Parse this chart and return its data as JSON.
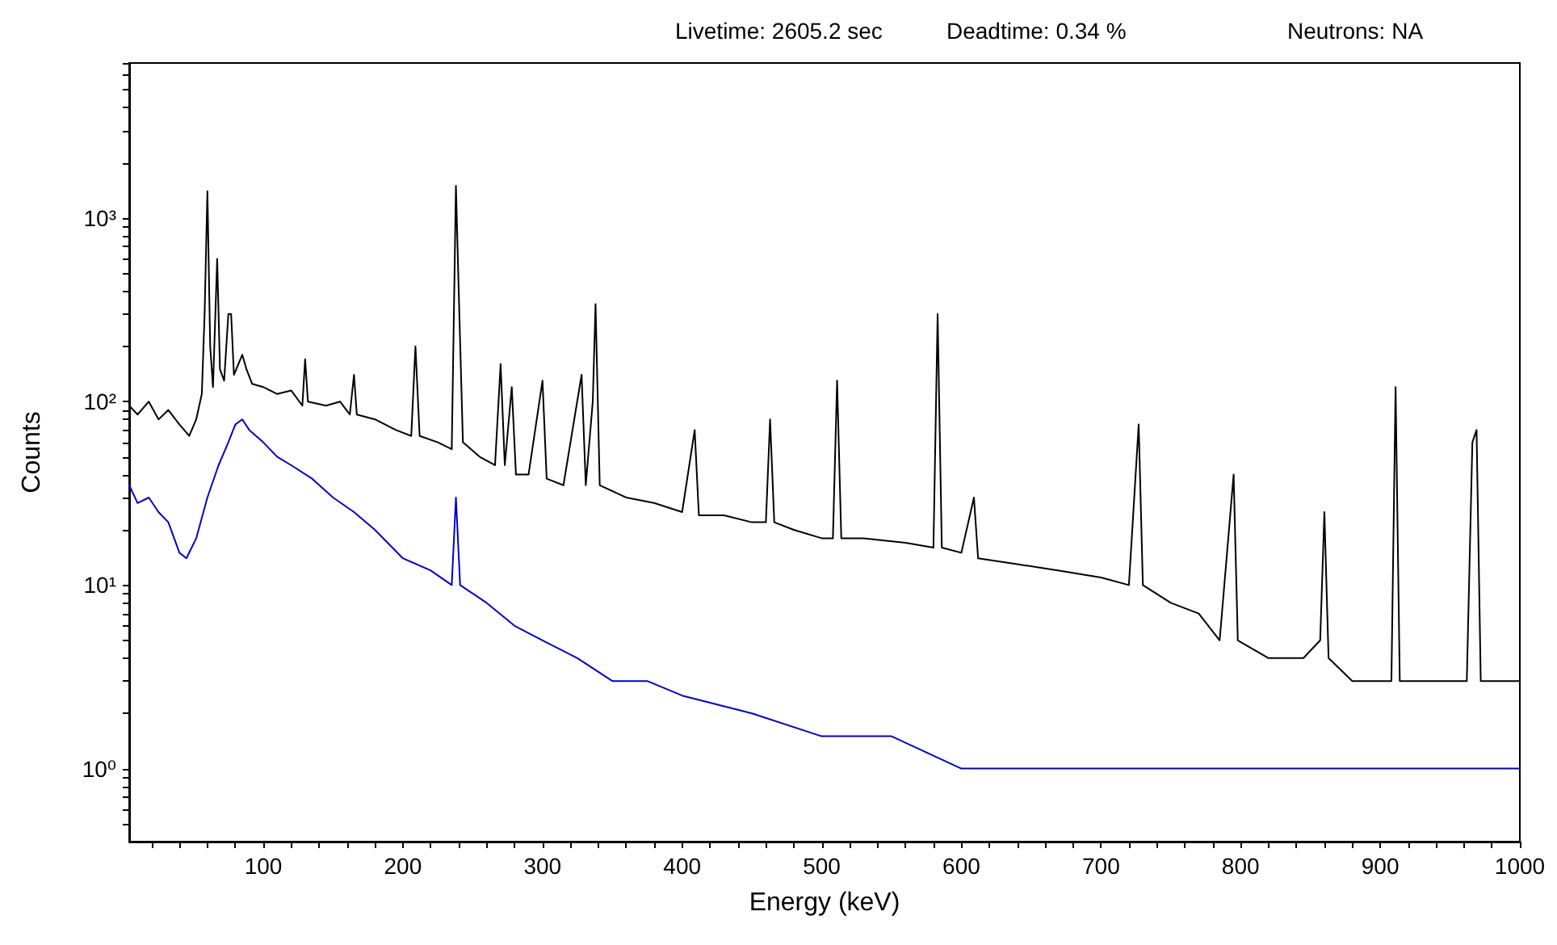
{
  "chart_data": {
    "type": "line",
    "xlabel": "Energy (keV)",
    "ylabel": "Counts",
    "annotations": [
      "Livetime: 2605.2 sec",
      "Deadtime: 0.34 %",
      "Neutrons: NA"
    ],
    "log": "y",
    "grid": false,
    "marker": "none",
    "line_style": "solid",
    "xlim": [
      4,
      1000
    ],
    "xticks": [
      {
        "value": 20,
        "label": null
      },
      {
        "value": 40,
        "label": null
      },
      {
        "value": 60,
        "label": null
      },
      {
        "value": 80,
        "label": null
      },
      100,
      {
        "value": 120,
        "label": null
      },
      {
        "value": 140,
        "label": null
      },
      {
        "value": 160,
        "label": null
      },
      {
        "value": 180,
        "label": null
      },
      200,
      {
        "value": 220,
        "label": null
      },
      {
        "value": 240,
        "label": null
      },
      {
        "value": 260,
        "label": null
      },
      {
        "value": 280,
        "label": null
      },
      300,
      {
        "value": 320,
        "label": null
      },
      {
        "value": 340,
        "label": null
      },
      {
        "value": 360,
        "label": null
      },
      {
        "value": 380,
        "label": null
      },
      400,
      {
        "value": 420,
        "label": null
      },
      {
        "value": 440,
        "label": null
      },
      {
        "value": 460,
        "label": null
      },
      {
        "value": 480,
        "label": null
      },
      500,
      {
        "value": 520,
        "label": null
      },
      {
        "value": 540,
        "label": null
      },
      {
        "value": 560,
        "label": null
      },
      {
        "value": 580,
        "label": null
      },
      600,
      {
        "value": 620,
        "label": null
      },
      {
        "value": 640,
        "label": null
      },
      {
        "value": 660,
        "label": null
      },
      {
        "value": 680,
        "label": null
      },
      700,
      {
        "value": 720,
        "label": null
      },
      {
        "value": 740,
        "label": null
      },
      {
        "value": 760,
        "label": null
      },
      {
        "value": 780,
        "label": null
      },
      800,
      {
        "value": 820,
        "label": null
      },
      {
        "value": 840,
        "label": null
      },
      {
        "value": 860,
        "label": null
      },
      {
        "value": 880,
        "label": null
      },
      900,
      {
        "value": 920,
        "label": null
      },
      {
        "value": 940,
        "label": null
      },
      {
        "value": 960,
        "label": null
      },
      {
        "value": 980,
        "label": null
      },
      1000
    ],
    "ylim": [
      0.4,
      7000
    ],
    "yticks": [
      {
        "value": 0.5,
        "label": null
      },
      {
        "value": 0.6,
        "label": null
      },
      {
        "value": 0.7,
        "label": null
      },
      {
        "value": 0.8,
        "label": null
      },
      {
        "value": 0.9,
        "label": null
      },
      {
        "value": 1,
        "label": "10⁰"
      },
      {
        "value": 2,
        "label": null
      },
      {
        "value": 3,
        "label": null
      },
      {
        "value": 4,
        "label": null
      },
      {
        "value": 5,
        "label": null
      },
      {
        "value": 6,
        "label": null
      },
      {
        "value": 7,
        "label": null
      },
      {
        "value": 8,
        "label": null
      },
      {
        "value": 9,
        "label": null
      },
      {
        "value": 10,
        "label": "10¹"
      },
      {
        "value": 20,
        "label": null
      },
      {
        "value": 30,
        "label": null
      },
      {
        "value": 40,
        "label": null
      },
      {
        "value": 50,
        "label": null
      },
      {
        "value": 60,
        "label": null
      },
      {
        "value": 70,
        "label": null
      },
      {
        "value": 80,
        "label": null
      },
      {
        "value": 90,
        "label": null
      },
      {
        "value": 100,
        "label": "10²"
      },
      {
        "value": 200,
        "label": null
      },
      {
        "value": 300,
        "label": null
      },
      {
        "value": 400,
        "label": null
      },
      {
        "value": 500,
        "label": null
      },
      {
        "value": 600,
        "label": null
      },
      {
        "value": 700,
        "label": null
      },
      {
        "value": 800,
        "label": null
      },
      {
        "value": 900,
        "label": null
      },
      {
        "value": 1000,
        "label": "10³"
      },
      {
        "value": 2000,
        "label": null
      },
      {
        "value": 3000,
        "label": null
      },
      {
        "value": 4000,
        "label": null
      },
      {
        "value": 5000,
        "label": null
      },
      {
        "value": 6000,
        "label": null
      },
      {
        "value": 7000,
        "label": null
      }
    ],
    "series": [
      {
        "color": "#000000",
        "x": [
          4,
          10,
          18,
          25,
          32,
          40,
          47,
          52,
          56,
          58,
          60,
          62,
          64,
          67,
          69,
          72,
          75,
          77,
          79,
          85,
          88,
          92,
          100,
          110,
          120,
          128,
          130,
          132,
          145,
          155,
          162,
          165,
          167,
          180,
          195,
          206,
          209,
          212,
          225,
          235,
          238,
          240,
          243,
          255,
          266,
          270,
          273,
          278,
          281,
          290,
          300,
          303,
          315,
          328,
          331,
          336,
          338,
          341,
          360,
          380,
          400,
          409,
          412,
          430,
          450,
          460,
          463,
          466,
          480,
          500,
          508,
          511,
          514,
          530,
          560,
          580,
          583,
          586,
          600,
          609,
          612,
          640,
          670,
          700,
          720,
          727,
          730,
          750,
          770,
          785,
          795,
          798,
          820,
          845,
          857,
          860,
          863,
          880,
          900,
          908,
          911,
          914,
          940,
          962,
          966,
          969,
          972,
          1000
        ],
        "values": [
          95,
          85,
          100,
          80,
          90,
          75,
          65,
          80,
          110,
          300,
          1400,
          200,
          120,
          600,
          150,
          130,
          300,
          300,
          140,
          180,
          150,
          125,
          120,
          110,
          115,
          95,
          170,
          100,
          95,
          100,
          85,
          140,
          85,
          80,
          70,
          65,
          200,
          65,
          60,
          55,
          1500,
          400,
          60,
          50,
          45,
          160,
          45,
          120,
          40,
          40,
          130,
          38,
          35,
          140,
          35,
          100,
          340,
          35,
          30,
          28,
          25,
          70,
          24,
          24,
          22,
          22,
          80,
          22,
          20,
          18,
          18,
          130,
          18,
          18,
          17,
          16,
          300,
          16,
          15,
          30,
          14,
          13,
          12,
          11,
          10,
          75,
          10,
          8,
          7,
          5,
          40,
          5,
          4,
          4,
          5,
          25,
          4,
          3,
          3,
          3,
          120,
          3,
          3,
          3,
          60,
          70,
          3,
          3
        ]
      },
      {
        "color": "#0000cc",
        "x": [
          4,
          10,
          18,
          25,
          32,
          40,
          45,
          52,
          60,
          68,
          75,
          80,
          85,
          90,
          100,
          110,
          120,
          135,
          150,
          165,
          180,
          200,
          220,
          235,
          238,
          241,
          260,
          280,
          300,
          325,
          350,
          375,
          400,
          450,
          500,
          550,
          600,
          650,
          700,
          770,
          800,
          900,
          1000
        ],
        "values": [
          35,
          28,
          30,
          25,
          22,
          15,
          14,
          18,
          30,
          45,
          60,
          75,
          80,
          70,
          60,
          50,
          45,
          38,
          30,
          25,
          20,
          14,
          12,
          10,
          30,
          10,
          8,
          6,
          5,
          4,
          3,
          3,
          2.5,
          2,
          1.5,
          1.5,
          1,
          1,
          1,
          1,
          1,
          1,
          1
        ]
      }
    ]
  }
}
